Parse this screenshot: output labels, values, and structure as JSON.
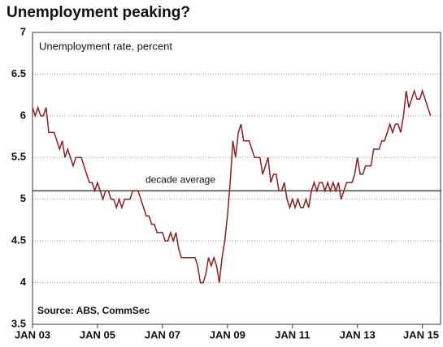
{
  "chart_data": {
    "type": "line",
    "title": "Unemployment peaking?",
    "subtitle": "Unemployment rate, percent",
    "source": "Source: ABS, CommSec",
    "reference": {
      "value": 5.1,
      "label": "decade average",
      "color": "#444444"
    },
    "grid": true,
    "x": [
      "2003-01",
      "2003-02",
      "2003-03",
      "2003-04",
      "2003-05",
      "2003-06",
      "2003-07",
      "2003-08",
      "2003-09",
      "2003-10",
      "2003-11",
      "2003-12",
      "2004-01",
      "2004-02",
      "2004-03",
      "2004-04",
      "2004-05",
      "2004-06",
      "2004-07",
      "2004-08",
      "2004-09",
      "2004-10",
      "2004-11",
      "2004-12",
      "2005-01",
      "2005-02",
      "2005-03",
      "2005-04",
      "2005-05",
      "2005-06",
      "2005-07",
      "2005-08",
      "2005-09",
      "2005-10",
      "2005-11",
      "2005-12",
      "2006-01",
      "2006-02",
      "2006-03",
      "2006-04",
      "2006-05",
      "2006-06",
      "2006-07",
      "2006-08",
      "2006-09",
      "2006-10",
      "2006-11",
      "2006-12",
      "2007-01",
      "2007-02",
      "2007-03",
      "2007-04",
      "2007-05",
      "2007-06",
      "2007-07",
      "2007-08",
      "2007-09",
      "2007-10",
      "2007-11",
      "2007-12",
      "2008-01",
      "2008-02",
      "2008-03",
      "2008-04",
      "2008-05",
      "2008-06",
      "2008-07",
      "2008-08",
      "2008-09",
      "2008-10",
      "2008-11",
      "2008-12",
      "2009-01",
      "2009-02",
      "2009-03",
      "2009-04",
      "2009-05",
      "2009-06",
      "2009-07",
      "2009-08",
      "2009-09",
      "2009-10",
      "2009-11",
      "2009-12",
      "2010-01",
      "2010-02",
      "2010-03",
      "2010-04",
      "2010-05",
      "2010-06",
      "2010-07",
      "2010-08",
      "2010-09",
      "2010-10",
      "2010-11",
      "2010-12",
      "2011-01",
      "2011-02",
      "2011-03",
      "2011-04",
      "2011-05",
      "2011-06",
      "2011-07",
      "2011-08",
      "2011-09",
      "2011-10",
      "2011-11",
      "2011-12",
      "2012-01",
      "2012-02",
      "2012-03",
      "2012-04",
      "2012-05",
      "2012-06",
      "2012-07",
      "2012-08",
      "2012-09",
      "2012-10",
      "2012-11",
      "2012-12",
      "2013-01",
      "2013-02",
      "2013-03",
      "2013-04",
      "2013-05",
      "2013-06",
      "2013-07",
      "2013-08",
      "2013-09",
      "2013-10",
      "2013-11",
      "2013-12",
      "2014-01",
      "2014-02",
      "2014-03",
      "2014-04",
      "2014-05",
      "2014-06",
      "2014-07",
      "2014-08",
      "2014-09",
      "2014-10",
      "2014-11",
      "2014-12",
      "2015-01",
      "2015-02",
      "2015-03",
      "2015-04"
    ],
    "series": [
      {
        "name": "Unemployment rate",
        "color": "#8b1f1f",
        "values": [
          6.1,
          6.0,
          6.1,
          6.0,
          6.0,
          6.1,
          5.8,
          5.8,
          5.8,
          5.7,
          5.6,
          5.7,
          5.5,
          5.6,
          5.5,
          5.4,
          5.5,
          5.5,
          5.5,
          5.4,
          5.3,
          5.2,
          5.2,
          5.1,
          5.2,
          5.1,
          5.0,
          5.1,
          5.1,
          5.0,
          5.0,
          4.9,
          5.0,
          4.9,
          5.0,
          5.0,
          5.0,
          5.1,
          5.1,
          5.1,
          5.0,
          4.9,
          4.8,
          4.8,
          4.7,
          4.7,
          4.6,
          4.6,
          4.6,
          4.5,
          4.5,
          4.6,
          4.5,
          4.6,
          4.4,
          4.3,
          4.3,
          4.3,
          4.3,
          4.3,
          4.3,
          4.2,
          4.0,
          4.0,
          4.1,
          4.3,
          4.2,
          4.3,
          4.2,
          4.0,
          4.3,
          4.5,
          4.8,
          5.2,
          5.7,
          5.5,
          5.8,
          5.9,
          5.7,
          5.7,
          5.7,
          5.6,
          5.5,
          5.5,
          5.5,
          5.3,
          5.4,
          5.5,
          5.2,
          5.3,
          5.3,
          5.1,
          5.1,
          5.2,
          5.0,
          4.9,
          5.0,
          4.9,
          5.0,
          4.9,
          4.9,
          5.0,
          4.9,
          5.1,
          5.2,
          5.1,
          5.2,
          5.2,
          5.1,
          5.2,
          5.1,
          5.2,
          5.1,
          5.2,
          5.0,
          5.1,
          5.2,
          5.2,
          5.2,
          5.3,
          5.5,
          5.3,
          5.3,
          5.4,
          5.4,
          5.4,
          5.6,
          5.6,
          5.6,
          5.7,
          5.7,
          5.8,
          5.9,
          5.8,
          5.9,
          5.9,
          5.8,
          6.0,
          6.3,
          6.1,
          6.2,
          6.3,
          6.2,
          6.2,
          6.3,
          6.2,
          6.1,
          6.0
        ]
      }
    ],
    "xlim": [
      "2003-01",
      "2015-08"
    ],
    "xticks": [
      {
        "value": "2003-01",
        "label": "JAN 03"
      },
      {
        "value": "2005-01",
        "label": "JAN 05"
      },
      {
        "value": "2007-01",
        "label": "JAN 07"
      },
      {
        "value": "2009-01",
        "label": "JAN 09"
      },
      {
        "value": "2011-01",
        "label": "JAN 11"
      },
      {
        "value": "2013-01",
        "label": "JAN 13"
      },
      {
        "value": "2015-01",
        "label": "JAN 15"
      }
    ],
    "ylim": [
      3.5,
      7
    ],
    "yticks": [
      3.5,
      4,
      4.5,
      5,
      5.5,
      6,
      6.5,
      7
    ]
  }
}
